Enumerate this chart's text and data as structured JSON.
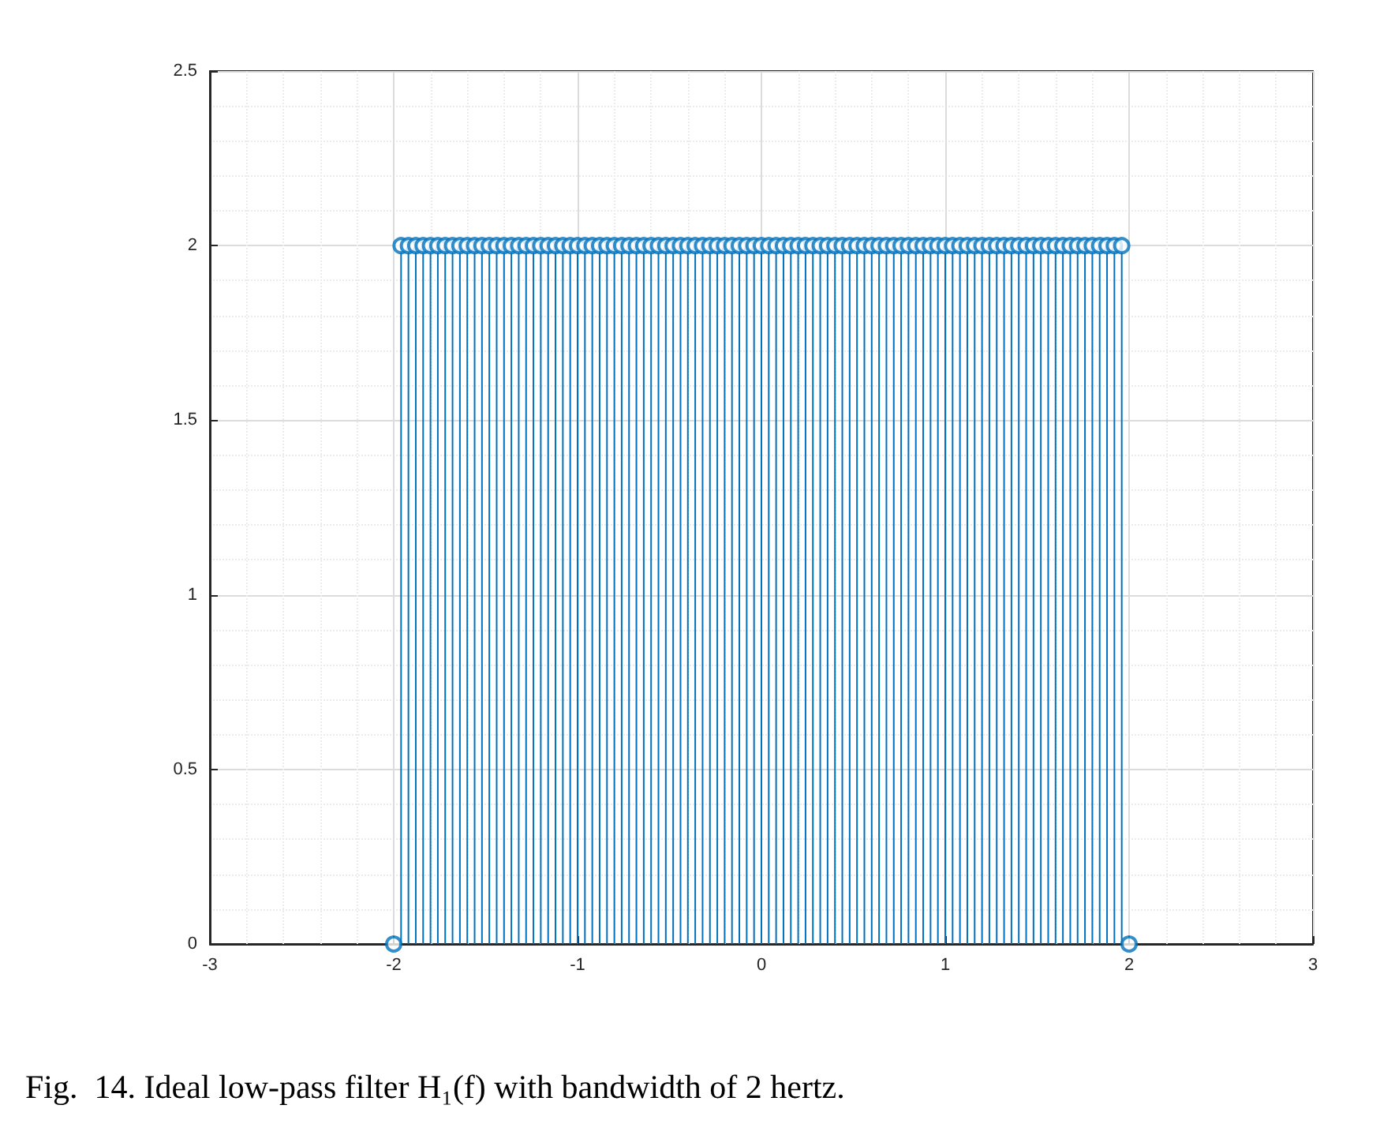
{
  "chart_data": {
    "type": "lollipop",
    "x": [
      -2,
      -1.96,
      -1.92,
      -1.88,
      -1.84,
      -1.8,
      -1.76,
      -1.72,
      -1.68,
      -1.64,
      -1.6,
      -1.56,
      -1.52,
      -1.48,
      -1.44,
      -1.4,
      -1.36,
      -1.32,
      -1.28,
      -1.24,
      -1.2,
      -1.16,
      -1.12,
      -1.08,
      -1.04,
      -1,
      -0.96,
      -0.92,
      -0.88,
      -0.84,
      -0.8,
      -0.76,
      -0.72,
      -0.68,
      -0.64,
      -0.6,
      -0.56,
      -0.52,
      -0.48,
      -0.44,
      -0.4,
      -0.36,
      -0.32,
      -0.28,
      -0.24,
      -0.2,
      -0.16,
      -0.12,
      -0.08,
      -0.04,
      0,
      0.04,
      0.08,
      0.12,
      0.16,
      0.2,
      0.24,
      0.28,
      0.32,
      0.36,
      0.4,
      0.44,
      0.48,
      0.52,
      0.56,
      0.6,
      0.64,
      0.68,
      0.72,
      0.76,
      0.8,
      0.84,
      0.88,
      0.92,
      0.96,
      1,
      1.04,
      1.08,
      1.12,
      1.16,
      1.2,
      1.24,
      1.28,
      1.32,
      1.36,
      1.4,
      1.44,
      1.48,
      1.52,
      1.56,
      1.6,
      1.64,
      1.68,
      1.72,
      1.76,
      1.8,
      1.84,
      1.88,
      1.92,
      1.96,
      2
    ],
    "series": [
      {
        "color": "#0072bd",
        "values": [
          0,
          2,
          2,
          2,
          2,
          2,
          2,
          2,
          2,
          2,
          2,
          2,
          2,
          2,
          2,
          2,
          2,
          2,
          2,
          2,
          2,
          2,
          2,
          2,
          2,
          2,
          2,
          2,
          2,
          2,
          2,
          2,
          2,
          2,
          2,
          2,
          2,
          2,
          2,
          2,
          2,
          2,
          2,
          2,
          2,
          2,
          2,
          2,
          2,
          2,
          2,
          2,
          2,
          2,
          2,
          2,
          2,
          2,
          2,
          2,
          2,
          2,
          2,
          2,
          2,
          2,
          2,
          2,
          2,
          2,
          2,
          2,
          2,
          2,
          2,
          2,
          2,
          2,
          2,
          2,
          2,
          2,
          2,
          2,
          2,
          2,
          2,
          2,
          2,
          2,
          2,
          2,
          2,
          2,
          2,
          2,
          2,
          2,
          2,
          2,
          0
        ]
      }
    ],
    "xlim": [
      -3,
      3
    ],
    "xticks": [
      -3,
      -2,
      -1,
      0,
      1,
      2,
      3
    ],
    "ylim": [
      0,
      2.5
    ],
    "yticks": [
      0,
      0.5,
      1,
      1.5,
      2,
      2.5
    ],
    "grid": true,
    "marker": "circle",
    "annotations": [
      "Fig.  14. Ideal low-pass filter H₁(f) with bandwidth of 2 hertz."
    ]
  }
}
